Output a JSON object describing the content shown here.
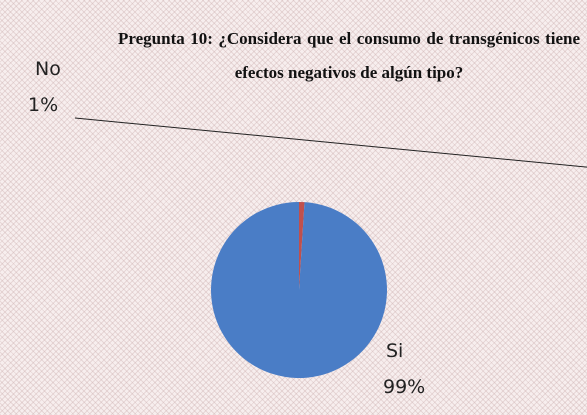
{
  "chart_data": {
    "type": "pie",
    "title": "Pregunta 10: ¿Considera que el consumo de transgénicos tiene efectos negativos de algún tipo?",
    "categories": [
      "No",
      "Si"
    ],
    "values": [
      1,
      99
    ],
    "value_labels": [
      "1%",
      "99%"
    ],
    "colors": [
      "#c0504d",
      "#4a7dc6"
    ]
  }
}
